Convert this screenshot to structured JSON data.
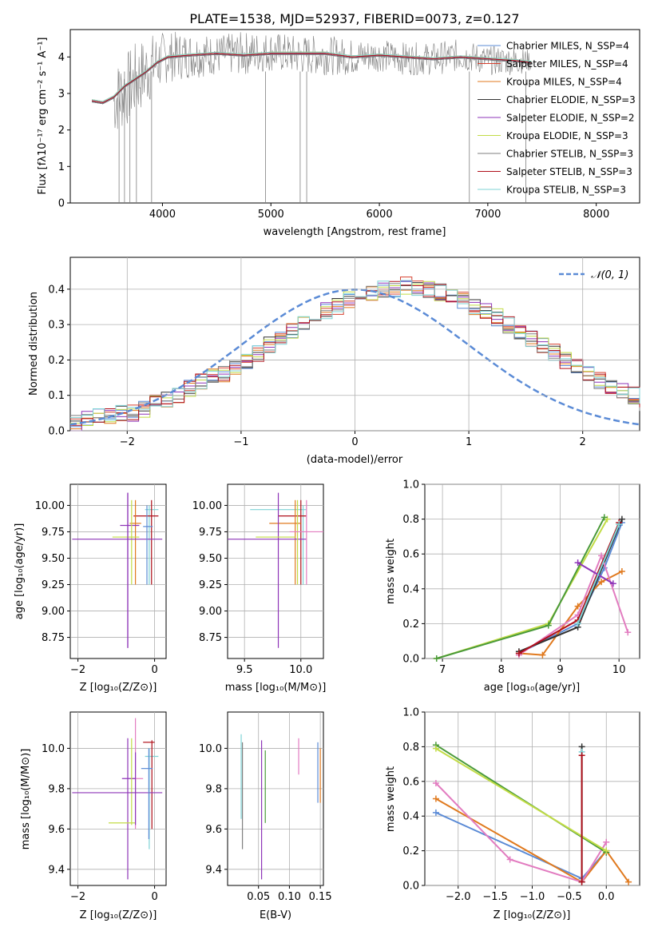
{
  "figure": {
    "title": "PLATE=1538, MJD=52937, FIBERID=0073, z=0.127",
    "colors": {
      "blue": "#5b8bd6",
      "red": "#d6402f",
      "orange": "#e07a1f",
      "black": "#333333",
      "purple": "#8e35b8",
      "lime": "#c2dc46",
      "gray": "#7f7f7f",
      "darkred": "#b0101a",
      "cyan": "#7fd3d6",
      "green": "#4a9a3a",
      "pink": "#e27cc0",
      "navy": "#333a5a"
    }
  },
  "chart_data": [
    {
      "id": "spectrum",
      "type": "line",
      "xlabel": "wavelength [Angstrom, rest frame]",
      "ylabel": "Flux [fλ10⁻¹⁷ erg cm⁻² s⁻¹ A⁻¹]",
      "xlim": [
        3150,
        8400
      ],
      "ylim": [
        0,
        4.75
      ],
      "xticks": [
        "4000",
        "5000",
        "6000",
        "7000",
        "8000"
      ],
      "yticks": [
        "0",
        "1",
        "2",
        "3",
        "4"
      ],
      "legend_position": "top-right",
      "series": [
        {
          "name": "Chabrier MILES, N_SSP=4",
          "color": "#5b8bd6"
        },
        {
          "name": "Salpeter MILES, N_SSP=4",
          "color": "#d6402f"
        },
        {
          "name": "Kroupa MILES, N_SSP=4",
          "color": "#e07a1f"
        },
        {
          "name": "Chabrier ELODIE, N_SSP=3",
          "color": "#333333"
        },
        {
          "name": "Salpeter ELODIE, N_SSP=2",
          "color": "#8e35b8"
        },
        {
          "name": "Kroupa ELODIE, N_SSP=3",
          "color": "#c2dc46"
        },
        {
          "name": "Chabrier STELIB, N_SSP=3",
          "color": "#7f7f7f"
        },
        {
          "name": "Salpeter STELIB, N_SSP=3",
          "color": "#b0101a"
        },
        {
          "name": "Kroupa STELIB, N_SSP=3",
          "color": "#7fd3d6"
        }
      ],
      "model_curve": {
        "x": [
          3350,
          3450,
          3550,
          3650,
          3750,
          3850,
          3950,
          4050,
          4250,
          4500,
          4750,
          5000,
          5250,
          5500,
          5750,
          6000,
          6250,
          6500,
          6750,
          7000,
          7250,
          7400
        ],
        "y": [
          2.8,
          2.75,
          2.9,
          3.2,
          3.4,
          3.6,
          3.85,
          4.0,
          4.05,
          4.1,
          4.05,
          4.1,
          4.1,
          4.1,
          4.0,
          4.05,
          4.0,
          3.95,
          4.0,
          3.95,
          3.9,
          3.85
        ]
      },
      "data_envelope": {
        "x": [
          3550,
          3650,
          3750,
          3850,
          3950,
          4050,
          4250,
          4500,
          4750,
          5000,
          5250,
          5500,
          5750,
          6000,
          6250,
          6500,
          6750,
          7000,
          7250,
          7400
        ],
        "low": [
          1.8,
          2.0,
          2.3,
          2.6,
          3.0,
          3.3,
          3.4,
          3.5,
          3.5,
          3.6,
          3.5,
          3.5,
          3.5,
          3.6,
          3.5,
          3.5,
          3.6,
          3.5,
          3.5,
          3.6
        ],
        "high": [
          3.8,
          4.1,
          4.4,
          4.6,
          4.7,
          4.7,
          4.7,
          4.6,
          4.7,
          4.7,
          4.6,
          4.6,
          4.5,
          4.5,
          4.4,
          4.4,
          4.5,
          4.3,
          4.3,
          4.2
        ]
      }
    },
    {
      "id": "residuals",
      "type": "line",
      "xlabel": "(data-model)/error",
      "ylabel": "Normed distribution",
      "xlim": [
        -2.5,
        2.5
      ],
      "ylim": [
        0,
        0.49
      ],
      "xticks": [
        "−2",
        "−1",
        "0",
        "1",
        "2"
      ],
      "yticks": [
        "0.0",
        "0.1",
        "0.2",
        "0.3",
        "0.4"
      ],
      "legend_position": "top-right",
      "reference_curve": {
        "name": "𝒩(0, 1)",
        "mean": 0,
        "sigma": 1
      },
      "bin_width": 0.1,
      "histogram": [
        0.02,
        0.03,
        0.04,
        0.04,
        0.05,
        0.05,
        0.06,
        0.08,
        0.09,
        0.1,
        0.12,
        0.14,
        0.15,
        0.16,
        0.18,
        0.2,
        0.22,
        0.24,
        0.26,
        0.28,
        0.3,
        0.32,
        0.34,
        0.35,
        0.37,
        0.38,
        0.39,
        0.4,
        0.4,
        0.41,
        0.4,
        0.4,
        0.39,
        0.38,
        0.37,
        0.35,
        0.34,
        0.32,
        0.3,
        0.28,
        0.26,
        0.24,
        0.22,
        0.2,
        0.18,
        0.16,
        0.14,
        0.13,
        0.11,
        0.1,
        0.08
      ]
    },
    {
      "id": "age-vs-Z",
      "type": "scatter",
      "xlabel": "Z [log₁₀(Z/Z⊙)]",
      "ylabel": "age  [log₁₀(age/yr)]",
      "xlim": [
        -2.2,
        0.3
      ],
      "ylim": [
        8.55,
        10.2
      ],
      "xticks": [
        "−2",
        "0"
      ],
      "yticks": [
        "8.75",
        "9.00",
        "9.25",
        "9.50",
        "9.75",
        "10.00"
      ]
    },
    {
      "id": "age-vs-mass",
      "type": "scatter",
      "xlabel": "mass [log₁₀(M/M⊙)]",
      "ylabel": "",
      "xlim": [
        9.35,
        10.2
      ],
      "ylim": [
        8.55,
        10.2
      ],
      "xticks": [
        "9.5",
        "10.0"
      ],
      "yticks": [
        "8.75",
        "9.00",
        "9.25",
        "9.50",
        "9.75",
        "10.00"
      ]
    },
    {
      "id": "weight-vs-age",
      "type": "line",
      "xlabel": "age  [log₁₀(age/yr)]",
      "ylabel": "mass weight",
      "xlim": [
        6.7,
        10.35
      ],
      "ylim": [
        0,
        1.0
      ],
      "xticks": [
        "7",
        "8",
        "9",
        "10"
      ],
      "yticks": [
        "0.0",
        "0.2",
        "0.4",
        "0.6",
        "0.8",
        "1.0"
      ],
      "series": [
        {
          "color": "#5b8bd6",
          "x": [
            8.3,
            9.3,
            9.75,
            10.05
          ],
          "y": [
            0.03,
            0.2,
            0.52,
            0.78
          ]
        },
        {
          "color": "#e07a1f",
          "x": [
            8.3,
            8.7,
            9.3,
            9.7,
            10.05
          ],
          "y": [
            0.03,
            0.02,
            0.3,
            0.44,
            0.5
          ]
        },
        {
          "color": "#333333",
          "x": [
            8.3,
            9.3,
            10.05
          ],
          "y": [
            0.04,
            0.18,
            0.8
          ]
        },
        {
          "color": "#c2dc46",
          "x": [
            6.9,
            8.8,
            9.8
          ],
          "y": [
            0.0,
            0.2,
            0.8
          ]
        },
        {
          "color": "#4a9a3a",
          "x": [
            6.9,
            8.8,
            9.75
          ],
          "y": [
            0.0,
            0.19,
            0.81
          ]
        },
        {
          "color": "#e27cc0",
          "x": [
            8.3,
            9.3,
            9.7,
            10.15
          ],
          "y": [
            0.02,
            0.25,
            0.59,
            0.15
          ]
        },
        {
          "color": "#b0101a",
          "x": [
            8.3,
            9.3,
            10.0
          ],
          "y": [
            0.03,
            0.22,
            0.78
          ]
        },
        {
          "color": "#8e35b8",
          "x": [
            9.3,
            9.9
          ],
          "y": [
            0.55,
            0.43
          ]
        },
        {
          "color": "#7fd3d6",
          "x": [
            9.3,
            10.0
          ],
          "y": [
            0.2,
            0.77
          ]
        }
      ]
    },
    {
      "id": "mass-vs-Z",
      "type": "scatter",
      "xlabel": "Z [log₁₀(Z/Z⊙)]",
      "ylabel": "mass [log₁₀(M/M⊙)]",
      "xlim": [
        -2.2,
        0.3
      ],
      "ylim": [
        9.32,
        10.18
      ],
      "xticks": [
        "−2",
        "0"
      ],
      "yticks": [
        "9.4",
        "9.6",
        "9.8",
        "10.0"
      ]
    },
    {
      "id": "mass-vs-ebv",
      "type": "scatter",
      "xlabel": "E(B-V)",
      "ylabel": "",
      "xlim": [
        0.0,
        0.155
      ],
      "ylim": [
        9.32,
        10.18
      ],
      "xticks": [
        "0.05",
        "0.10",
        "0.15"
      ],
      "yticks": [
        "9.4",
        "9.6",
        "9.8",
        "10.0"
      ]
    },
    {
      "id": "weight-vs-Z",
      "type": "line",
      "xlabel": "Z [log₁₀(Z/Z⊙)]",
      "ylabel": "mass weight",
      "xlim": [
        -2.45,
        0.45
      ],
      "ylim": [
        0,
        1.0
      ],
      "xticks": [
        "−2.0",
        "−1.5",
        "−1.0",
        "−0.5",
        "0.0"
      ],
      "yticks": [
        "0.0",
        "0.2",
        "0.4",
        "0.6",
        "0.8",
        "1.0"
      ],
      "series": [
        {
          "color": "#5b8bd6",
          "x": [
            -2.3,
            -0.33,
            0.0
          ],
          "y": [
            0.42,
            0.04,
            0.2
          ]
        },
        {
          "color": "#e07a1f",
          "x": [
            -2.3,
            -0.33,
            0.0,
            0.3
          ],
          "y": [
            0.5,
            0.02,
            0.2,
            0.02
          ]
        },
        {
          "color": "#e27cc0",
          "x": [
            -2.3,
            -1.3,
            -0.33,
            0.0
          ],
          "y": [
            0.59,
            0.15,
            0.02,
            0.25
          ]
        },
        {
          "color": "#4a9a3a",
          "x": [
            -2.3,
            0.0
          ],
          "y": [
            0.81,
            0.19
          ]
        },
        {
          "color": "#c2dc46",
          "x": [
            -2.3,
            0.0
          ],
          "y": [
            0.79,
            0.2
          ]
        },
        {
          "color": "#333333",
          "x": [
            -0.33,
            -0.33
          ],
          "y": [
            0.8,
            0.02
          ]
        },
        {
          "color": "#7fd3d6",
          "x": [
            -0.33,
            -0.33
          ],
          "y": [
            0.77,
            0.02
          ]
        },
        {
          "color": "#b0101a",
          "x": [
            -0.33,
            -0.33
          ],
          "y": [
            0.75,
            0.02
          ]
        }
      ]
    }
  ]
}
